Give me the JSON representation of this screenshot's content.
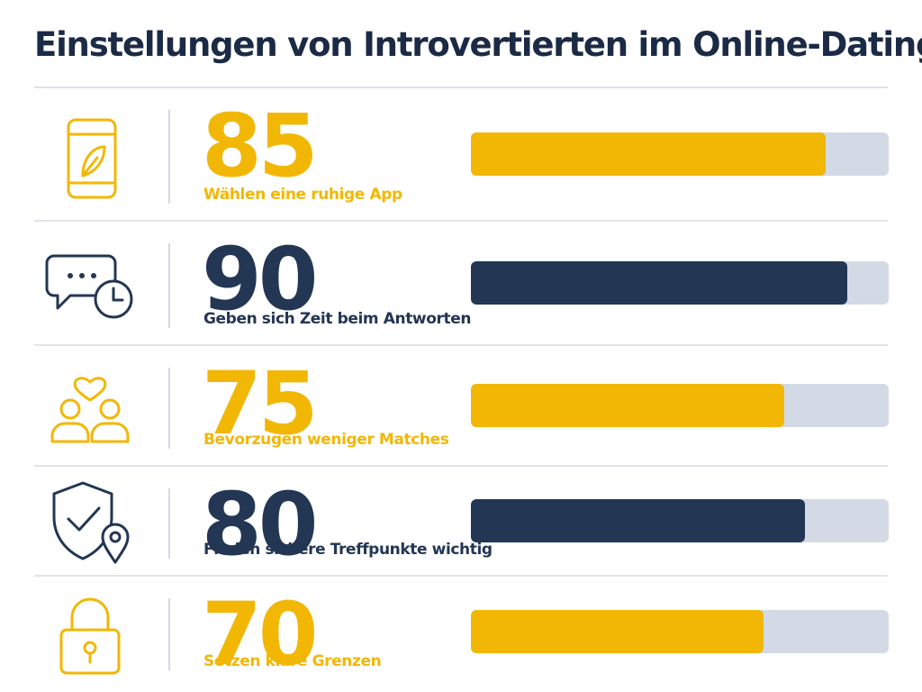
{
  "title": "Einstellungen von Introvertierten im Online-Dating",
  "colors": {
    "accent": "#f2b705",
    "dark": "#233654",
    "track": "#d3dae6"
  },
  "chart_data": {
    "type": "bar",
    "orientation": "horizontal",
    "title": "Einstellungen von Introvertierten im Online-Dating",
    "xlim": [
      0,
      100
    ],
    "categories": [
      "Wählen eine ruhige App",
      "Geben sich Zeit beim Antworten",
      "Bevorzugen weniger Matches",
      "Finden sichere Treffpunkte wichtig",
      "Setzen klare Grenzen"
    ],
    "values": [
      85,
      90,
      75,
      80,
      70
    ],
    "items": [
      {
        "value": 85,
        "label": "Wählen eine ruhige App",
        "icon": "smartphone-leaf-icon",
        "color": "#f2b705"
      },
      {
        "value": 90,
        "label": "Geben sich Zeit beim Antworten",
        "icon": "chat-clock-icon",
        "color": "#233654"
      },
      {
        "value": 75,
        "label": "Bevorzugen weniger Matches",
        "icon": "couple-heart-icon",
        "color": "#f2b705"
      },
      {
        "value": 80,
        "label": "Finden sichere Treffpunkte wichtig",
        "icon": "shield-location-icon",
        "color": "#233654"
      },
      {
        "value": 70,
        "label": "Setzen klare Grenzen",
        "icon": "padlock-icon",
        "color": "#f2b705"
      }
    ]
  }
}
